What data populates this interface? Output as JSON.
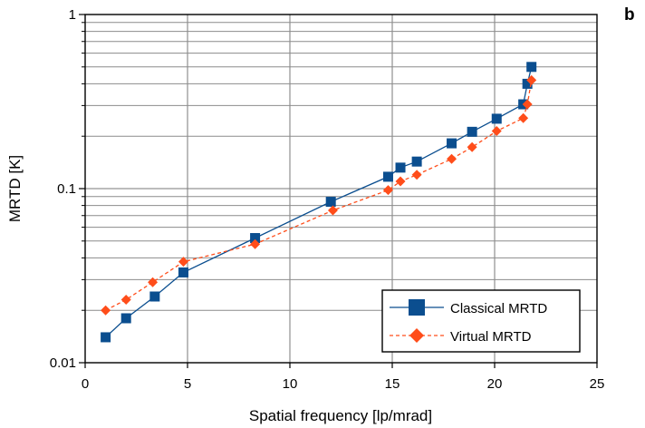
{
  "panel_label": "b",
  "chart_data": {
    "type": "line",
    "title": "",
    "xlabel": "Spatial frequency [lp/mrad]",
    "ylabel": "MRTD [K]",
    "xlim": [
      0,
      25
    ],
    "ylim": [
      0.01,
      1
    ],
    "yscale": "log",
    "grid": true,
    "x_ticks": [
      "0",
      "5",
      "10",
      "15",
      "20",
      "25"
    ],
    "y_ticks": [
      "0.01",
      "0.1",
      "1"
    ],
    "legend_position": "bottom-right",
    "series": [
      {
        "name": "Classical MRTD",
        "color": "#0b4e8f",
        "marker": "square",
        "line_style": "solid",
        "x": [
          1.0,
          2.0,
          3.4,
          4.8,
          8.3,
          12.0,
          14.8,
          15.4,
          16.2,
          17.9,
          18.9,
          20.1,
          21.4,
          21.6,
          21.8
        ],
        "y": [
          0.014,
          0.018,
          0.024,
          0.033,
          0.052,
          0.084,
          0.117,
          0.132,
          0.143,
          0.182,
          0.212,
          0.252,
          0.305,
          0.4,
          0.5
        ]
      },
      {
        "name": "Virtual MRTD",
        "color": "#ff4d1a",
        "marker": "diamond",
        "line_style": "dashed",
        "x": [
          1.0,
          2.0,
          3.3,
          4.8,
          8.3,
          12.1,
          14.8,
          15.4,
          16.2,
          17.9,
          18.9,
          20.1,
          21.4,
          21.6,
          21.8
        ],
        "y": [
          0.02,
          0.023,
          0.029,
          0.038,
          0.048,
          0.075,
          0.098,
          0.11,
          0.12,
          0.148,
          0.173,
          0.214,
          0.254,
          0.305,
          0.42
        ]
      }
    ]
  }
}
